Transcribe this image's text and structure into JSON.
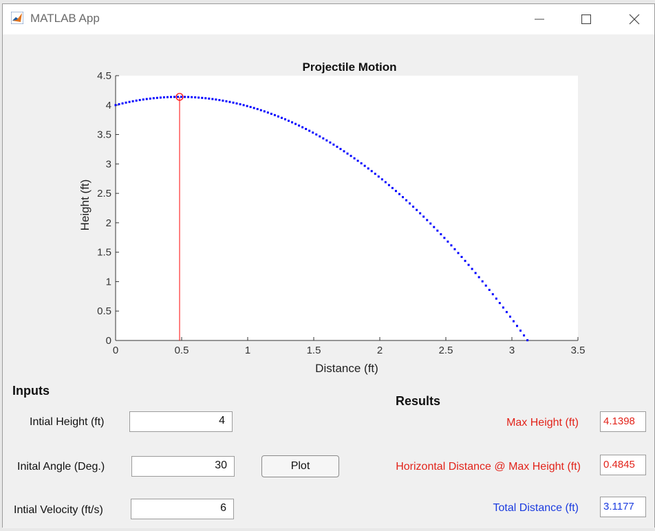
{
  "window": {
    "title": "MATLAB App",
    "icon": "matlab-logo-icon",
    "controls": [
      "minimize-icon",
      "maximize-icon",
      "close-icon"
    ]
  },
  "chart_data": {
    "type": "scatter",
    "title": "Projectile Motion",
    "xlabel": "Distance (ft)",
    "ylabel": "Height (ft)",
    "xlim": [
      0,
      3.5
    ],
    "ylim": [
      0,
      4.5
    ],
    "xticks": [
      "0",
      "0.5",
      "1",
      "1.5",
      "2",
      "2.5",
      "3",
      "3.5"
    ],
    "yticks": [
      "0",
      "0.5",
      "1",
      "1.5",
      "2",
      "2.5",
      "3",
      "3.5",
      "4",
      "4.5"
    ],
    "grid": false,
    "marker_color": "#0000ff",
    "model": {
      "initial_height": 4,
      "angle_deg": 30,
      "velocity": 6,
      "gravity": 32.2
    },
    "series": [
      {
        "x_start": 0,
        "x_end": 3.1177,
        "points": 120
      }
    ],
    "annotations": {
      "max_point": {
        "x": 0.4845,
        "y": 4.1398,
        "color": "#ff0000"
      }
    }
  },
  "inputs": {
    "section_label": "Inputs",
    "height_label": "Intial Height (ft)",
    "height_value": "4",
    "angle_label": "Inital Angle (Deg.)",
    "angle_value": "30",
    "velocity_label": "Intial Velocity (ft/s)",
    "velocity_value": "6"
  },
  "plot_button": "Plot",
  "results": {
    "section_label": "Results",
    "max_height_label": "Max Height (ft)",
    "max_height_value": "4.1398",
    "horiz_label": "Horizontal Distance  @  Max Height (ft)",
    "horiz_value": "0.4845",
    "total_label": "Total Distance (ft)",
    "total_value": "3.1177"
  },
  "colors": {
    "red": "#e2231a",
    "blue": "#1a3bdf"
  }
}
